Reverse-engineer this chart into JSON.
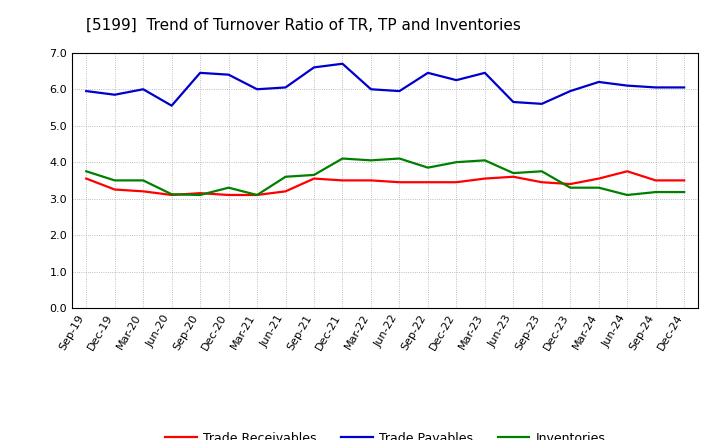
{
  "title": "[5199]  Trend of Turnover Ratio of TR, TP and Inventories",
  "x_labels": [
    "Sep-19",
    "Dec-19",
    "Mar-20",
    "Jun-20",
    "Sep-20",
    "Dec-20",
    "Mar-21",
    "Jun-21",
    "Sep-21",
    "Dec-21",
    "Mar-22",
    "Jun-22",
    "Sep-22",
    "Dec-22",
    "Mar-23",
    "Jun-23",
    "Sep-23",
    "Dec-23",
    "Mar-24",
    "Jun-24",
    "Sep-24",
    "Dec-24"
  ],
  "trade_receivables": [
    3.55,
    3.25,
    3.2,
    3.1,
    3.15,
    3.1,
    3.1,
    3.2,
    3.55,
    3.5,
    3.5,
    3.45,
    3.45,
    3.45,
    3.55,
    3.6,
    3.45,
    3.4,
    3.55,
    3.75,
    3.5,
    3.5
  ],
  "trade_payables": [
    5.95,
    5.85,
    6.0,
    5.55,
    6.45,
    6.4,
    6.0,
    6.05,
    6.6,
    6.7,
    6.0,
    5.95,
    6.45,
    6.25,
    6.45,
    5.65,
    5.6,
    5.95,
    6.2,
    6.1,
    6.05,
    6.05
  ],
  "inventories": [
    3.75,
    3.5,
    3.5,
    3.12,
    3.1,
    3.3,
    3.1,
    3.6,
    3.65,
    4.1,
    4.05,
    4.1,
    3.85,
    4.0,
    4.05,
    3.7,
    3.75,
    3.3,
    3.3,
    3.1,
    3.18,
    3.18
  ],
  "ylim": [
    0.0,
    7.0
  ],
  "yticks": [
    0.0,
    1.0,
    2.0,
    3.0,
    4.0,
    5.0,
    6.0,
    7.0
  ],
  "line_colors": {
    "trade_receivables": "#ff0000",
    "trade_payables": "#0000cc",
    "inventories": "#008000"
  },
  "legend_labels": [
    "Trade Receivables",
    "Trade Payables",
    "Inventories"
  ],
  "background_color": "#ffffff",
  "grid_color": "#aaaaaa",
  "line_width": 1.6,
  "title_fontsize": 11,
  "tick_fontsize": 8,
  "legend_fontsize": 9
}
